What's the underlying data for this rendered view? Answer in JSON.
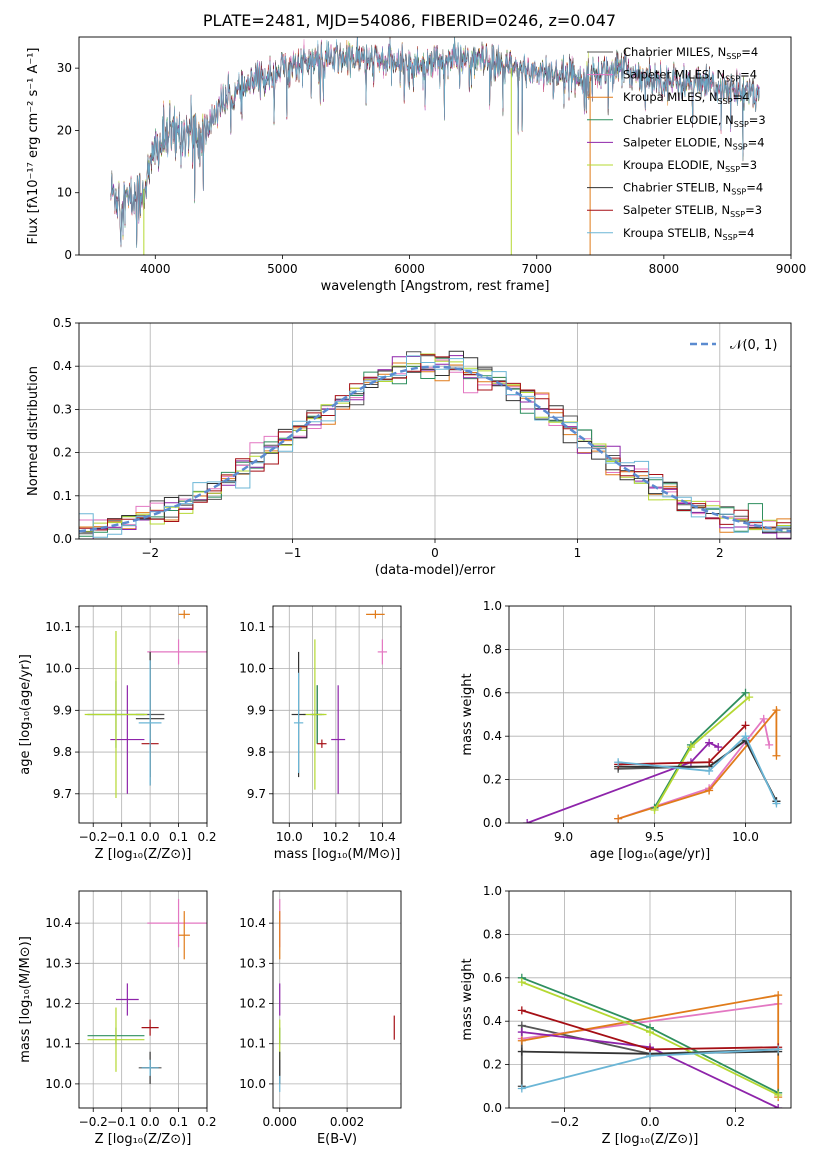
{
  "title": "PLATE=2481, MJD=54086, FIBERID=0246, z=0.047",
  "legend_names": [
    "Chabrier MILES",
    "Salpeter MILES",
    "Kroupa MILES",
    "Chabrier ELODIE",
    "Salpeter ELODIE",
    "Kroupa ELODIE",
    "Chabrier STELIB",
    "Salpeter STELIB",
    "Kroupa STELIB"
  ],
  "legend_nssp": [
    "4",
    "4",
    "4",
    "3",
    "4",
    "3",
    "4",
    "3",
    "4"
  ],
  "legend_nssp_prefix": "N",
  "legend_nssp_sub": "SSP",
  "colors": [
    "#7f7f7f",
    "#e377c2",
    "#ff7f0e",
    "#2e7d32",
    "#9c27b0",
    "#cddc39",
    "#212121",
    "#b71c1c",
    "#80deea"
  ],
  "colors_lines": [
    "#555555",
    "#e377c2",
    "#e07b1a",
    "#2f8f5f",
    "#8e24aa",
    "#b5d832",
    "#333333",
    "#a50f15",
    "#6bb6d6"
  ],
  "chart_data": [
    {
      "type": "line",
      "id": "spectrum",
      "xlabel": "wavelength [Angstrom, rest frame]",
      "ylabel": "Flux [fλ10⁻¹⁷ erg cm⁻² s⁻¹ A⁻¹]",
      "xlim": [
        3400,
        9000
      ],
      "ylim": [
        0,
        35
      ],
      "xticks": [
        4000,
        5000,
        6000,
        7000,
        8000,
        9000
      ],
      "yticks": [
        0,
        10,
        20,
        30
      ],
      "envelope": {
        "x": [
          3650,
          3800,
          3900,
          3950,
          4000,
          4100,
          4300,
          4350,
          4500,
          4800,
          4900,
          5000,
          5200,
          5400,
          5600,
          5800,
          6000,
          6200,
          6400,
          6600,
          6800,
          7000,
          7200,
          7400,
          7600,
          7800,
          8000,
          8200,
          8400,
          8600,
          8750
        ],
        "y": [
          10,
          8.5,
          10,
          13,
          17,
          19,
          20,
          18,
          24,
          28,
          29,
          30,
          31,
          31.5,
          31.5,
          31,
          30.5,
          31,
          31.5,
          31,
          30,
          29.5,
          29,
          28.5,
          30,
          29,
          28,
          27.5,
          27,
          26.5,
          26
        ]
      },
      "dropouts": [
        {
          "x": 3910,
          "color_index": 5
        },
        {
          "x": 6800,
          "color_index": 5
        },
        {
          "x": 7420,
          "color_index": 2
        }
      ]
    },
    {
      "type": "bar",
      "id": "residual-histogram",
      "xlabel": "(data-model)/error",
      "ylabel": "Normed distribution",
      "xlim": [
        -2.5,
        2.5
      ],
      "ylim": [
        0,
        0.5
      ],
      "xticks": [
        -2,
        -1,
        0,
        1,
        2
      ],
      "yticks": [
        0.0,
        0.1,
        0.2,
        0.3,
        0.4,
        0.5
      ],
      "bin_width": 0.1,
      "legend": "𝒩(0, 1)",
      "reference_curve": {
        "type": "normal",
        "mean": 0,
        "sd": 1
      }
    },
    {
      "type": "scatter",
      "id": "age-vs-metallicity",
      "xlabel": "Z [log₁₀(Z/Z⊙)]",
      "ylabel": "age  [log₁₀(age/yr)]",
      "xlim": [
        -0.25,
        0.2
      ],
      "ylim": [
        9.63,
        10.15
      ],
      "xticks": [
        -0.2,
        -0.1,
        0.0,
        0.1,
        0.2
      ],
      "yticks": [
        9.7,
        9.8,
        9.9,
        10.0,
        10.1
      ],
      "points": [
        {
          "x": 0.0,
          "y": 9.89,
          "xerr": 0.05,
          "yerr": 0.15,
          "color_index": 0
        },
        {
          "x": 0.1,
          "y": 10.04,
          "xerr": 0.11,
          "yerr": 0.03,
          "color_index": 1
        },
        {
          "x": 0.12,
          "y": 10.13,
          "xerr": 0.02,
          "yerr": 0.01,
          "color_index": 2
        },
        {
          "x": -0.12,
          "y": 9.89,
          "xerr": 0.1,
          "yerr": 0.08,
          "color_index": 3
        },
        {
          "x": -0.08,
          "y": 9.83,
          "xerr": 0.06,
          "yerr": 0.13,
          "color_index": 4
        },
        {
          "x": -0.12,
          "y": 9.89,
          "xerr": 0.11,
          "yerr": 0.2,
          "color_index": 5
        },
        {
          "x": 0.0,
          "y": 9.88,
          "xerr": 0.05,
          "yerr": 0.16,
          "color_index": 6
        },
        {
          "x": 0.0,
          "y": 9.82,
          "xerr": 0.03,
          "yerr": 0.01,
          "color_index": 7
        },
        {
          "x": 0.0,
          "y": 9.87,
          "xerr": 0.04,
          "yerr": 0.15,
          "color_index": 8
        }
      ]
    },
    {
      "type": "scatter",
      "id": "age-vs-mass",
      "xlabel": "mass [log₁₀(M/M⊙)]",
      "ylabel": "",
      "xlim": [
        9.93,
        10.48
      ],
      "ylim": [
        9.63,
        10.15
      ],
      "xticks": [
        10.0,
        10.1,
        10.2,
        10.3,
        10.4
      ],
      "xticklabels": [
        "10.0",
        "",
        "10.2",
        "",
        "10.4"
      ],
      "yticks": [
        9.7,
        9.8,
        9.9,
        10.0,
        10.1
      ],
      "points": [
        {
          "x": 10.12,
          "y": 9.89,
          "xerr": 0.02,
          "yerr": 0.07,
          "color_index": 0
        },
        {
          "x": 10.4,
          "y": 10.04,
          "xerr": 0.02,
          "yerr": 0.03,
          "color_index": 1
        },
        {
          "x": 10.37,
          "y": 10.13,
          "xerr": 0.04,
          "yerr": 0.01,
          "color_index": 2
        },
        {
          "x": 10.12,
          "y": 9.89,
          "xerr": 0.03,
          "yerr": 0.07,
          "color_index": 3
        },
        {
          "x": 10.21,
          "y": 9.83,
          "xerr": 0.03,
          "yerr": 0.13,
          "color_index": 4
        },
        {
          "x": 10.11,
          "y": 9.89,
          "xerr": 0.05,
          "yerr": 0.18,
          "color_index": 5
        },
        {
          "x": 10.04,
          "y": 9.89,
          "xerr": 0.03,
          "yerr": 0.15,
          "color_index": 6
        },
        {
          "x": 10.14,
          "y": 9.82,
          "xerr": 0.02,
          "yerr": 0.01,
          "color_index": 7
        },
        {
          "x": 10.04,
          "y": 9.87,
          "xerr": 0.02,
          "yerr": 0.12,
          "color_index": 8
        }
      ]
    },
    {
      "type": "line",
      "id": "mass-weight-vs-age",
      "xlabel": "age  [log₁₀(age/yr)]",
      "ylabel": "mass weight",
      "xlim": [
        8.7,
        10.25
      ],
      "ylim": [
        0.0,
        1.0
      ],
      "xticks": [
        9.0,
        9.5,
        10.0
      ],
      "yticks": [
        0.0,
        0.2,
        0.4,
        0.6,
        0.8,
        1.0
      ],
      "series": [
        {
          "color_index": 0,
          "x": [
            9.3,
            9.8,
            10.0,
            10.17
          ],
          "y": [
            0.25,
            0.26,
            0.38,
            0.1
          ]
        },
        {
          "color_index": 1,
          "x": [
            9.3,
            9.8,
            10.1,
            10.13
          ],
          "y": [
            0.02,
            0.16,
            0.48,
            0.36
          ]
        },
        {
          "color_index": 2,
          "x": [
            9.3,
            9.8,
            10.17,
            10.17
          ],
          "y": [
            0.02,
            0.15,
            0.52,
            0.31
          ]
        },
        {
          "color_index": 3,
          "x": [
            9.5,
            9.7,
            10.0
          ],
          "y": [
            0.07,
            0.36,
            0.6
          ]
        },
        {
          "color_index": 4,
          "x": [
            8.8,
            9.7,
            9.8,
            9.85
          ],
          "y": [
            0.0,
            0.28,
            0.37,
            0.35
          ]
        },
        {
          "color_index": 5,
          "x": [
            9.5,
            9.7,
            10.02
          ],
          "y": [
            0.06,
            0.35,
            0.58
          ]
        },
        {
          "color_index": 6,
          "x": [
            9.3,
            9.8,
            10.0,
            10.17
          ],
          "y": [
            0.26,
            0.26,
            0.38,
            0.1
          ]
        },
        {
          "color_index": 7,
          "x": [
            9.3,
            9.8,
            10.0
          ],
          "y": [
            0.27,
            0.28,
            0.45
          ]
        },
        {
          "color_index": 8,
          "x": [
            9.3,
            9.8,
            10.0,
            10.17
          ],
          "y": [
            0.28,
            0.24,
            0.4,
            0.09
          ]
        }
      ]
    },
    {
      "type": "scatter",
      "id": "mass-vs-metallicity",
      "xlabel": "Z [log₁₀(Z/Z⊙)]",
      "ylabel": "mass [log₁₀(M/M⊙)]",
      "xlim": [
        -0.25,
        0.2
      ],
      "ylim": [
        9.94,
        10.48
      ],
      "xticks": [
        -0.2,
        -0.1,
        0.0,
        0.1,
        0.2
      ],
      "yticks": [
        10.0,
        10.1,
        10.2,
        10.3,
        10.4
      ],
      "points": [
        {
          "x": 0.0,
          "y": 10.04,
          "xerr": 0.04,
          "yerr": 0.02,
          "color_index": 0
        },
        {
          "x": 0.1,
          "y": 10.4,
          "xerr": 0.11,
          "yerr": 0.06,
          "color_index": 1
        },
        {
          "x": 0.12,
          "y": 10.37,
          "xerr": 0.02,
          "yerr": 0.06,
          "color_index": 2
        },
        {
          "x": -0.12,
          "y": 10.12,
          "xerr": 0.1,
          "yerr": 0.02,
          "color_index": 3
        },
        {
          "x": -0.08,
          "y": 10.21,
          "xerr": 0.04,
          "yerr": 0.04,
          "color_index": 4
        },
        {
          "x": -0.12,
          "y": 10.11,
          "xerr": 0.1,
          "yerr": 0.08,
          "color_index": 5
        },
        {
          "x": 0.0,
          "y": 10.04,
          "xerr": 0.03,
          "yerr": 0.04,
          "color_index": 6
        },
        {
          "x": 0.0,
          "y": 10.14,
          "xerr": 0.03,
          "yerr": 0.02,
          "color_index": 7
        },
        {
          "x": 0.0,
          "y": 10.04,
          "xerr": 0.03,
          "yerr": 0.02,
          "color_index": 8
        }
      ]
    },
    {
      "type": "scatter",
      "id": "mass-vs-extinction",
      "xlabel": "E(B-V)",
      "ylabel": "",
      "xlim": [
        -0.0002,
        0.0036
      ],
      "ylim": [
        9.94,
        10.48
      ],
      "xticks": [
        0.0,
        0.002
      ],
      "xticklabels": [
        "0.000",
        "0.002"
      ],
      "yticks": [
        10.0,
        10.1,
        10.2,
        10.3,
        10.4
      ],
      "points": [
        {
          "x": 0.0,
          "y": 10.04,
          "xerr": 0,
          "yerr": 0.02,
          "color_index": 0
        },
        {
          "x": 0.0,
          "y": 10.4,
          "xerr": 0,
          "yerr": 0.06,
          "color_index": 1
        },
        {
          "x": 0.0,
          "y": 10.37,
          "xerr": 0,
          "yerr": 0.06,
          "color_index": 2
        },
        {
          "x": 0.0,
          "y": 10.12,
          "xerr": 0,
          "yerr": 0.02,
          "color_index": 3
        },
        {
          "x": 0.0,
          "y": 10.21,
          "xerr": 0,
          "yerr": 0.04,
          "color_index": 4
        },
        {
          "x": 0.0,
          "y": 10.11,
          "xerr": 0,
          "yerr": 0.05,
          "color_index": 5
        },
        {
          "x": 0.0,
          "y": 10.04,
          "xerr": 0,
          "yerr": 0.04,
          "color_index": 6
        },
        {
          "x": 0.0034,
          "y": 10.14,
          "xerr": 0,
          "yerr": 0.03,
          "color_index": 7
        },
        {
          "x": 0.0,
          "y": 10.0,
          "xerr": 0,
          "yerr": 0.02,
          "color_index": 8
        }
      ]
    },
    {
      "type": "line",
      "id": "mass-weight-vs-metallicity",
      "xlabel": "Z [log₁₀(Z/Z⊙)]",
      "ylabel": "mass weight",
      "xlim": [
        -0.33,
        0.33
      ],
      "ylim": [
        0.0,
        1.0
      ],
      "xticks": [
        -0.2,
        0.0,
        0.2
      ],
      "yticks": [
        0.0,
        0.2,
        0.4,
        0.6,
        0.8,
        1.0
      ],
      "series": [
        {
          "color_index": 0,
          "x": [
            -0.3,
            -0.3,
            0.0,
            0.3
          ],
          "y": [
            0.1,
            0.38,
            0.25,
            0.27
          ]
        },
        {
          "color_index": 1,
          "x": [
            -0.3,
            0.3
          ],
          "y": [
            0.32,
            0.48
          ]
        },
        {
          "color_index": 2,
          "x": [
            -0.3,
            0.3,
            0.3
          ],
          "y": [
            0.31,
            0.52,
            0.05
          ]
        },
        {
          "color_index": 3,
          "x": [
            -0.3,
            0.0,
            0.3
          ],
          "y": [
            0.6,
            0.37,
            0.07
          ]
        },
        {
          "color_index": 4,
          "x": [
            -0.3,
            0.0,
            0.3
          ],
          "y": [
            0.35,
            0.28,
            0.0
          ]
        },
        {
          "color_index": 5,
          "x": [
            -0.3,
            0.0,
            0.3
          ],
          "y": [
            0.58,
            0.35,
            0.06
          ]
        },
        {
          "color_index": 6,
          "x": [
            -0.3,
            0.0,
            0.3
          ],
          "y": [
            0.26,
            0.25,
            0.26
          ]
        },
        {
          "color_index": 7,
          "x": [
            -0.3,
            0.0,
            0.3
          ],
          "y": [
            0.45,
            0.27,
            0.28
          ]
        },
        {
          "color_index": 8,
          "x": [
            -0.3,
            0.0,
            0.3
          ],
          "y": [
            0.09,
            0.24,
            0.27
          ]
        }
      ]
    }
  ]
}
